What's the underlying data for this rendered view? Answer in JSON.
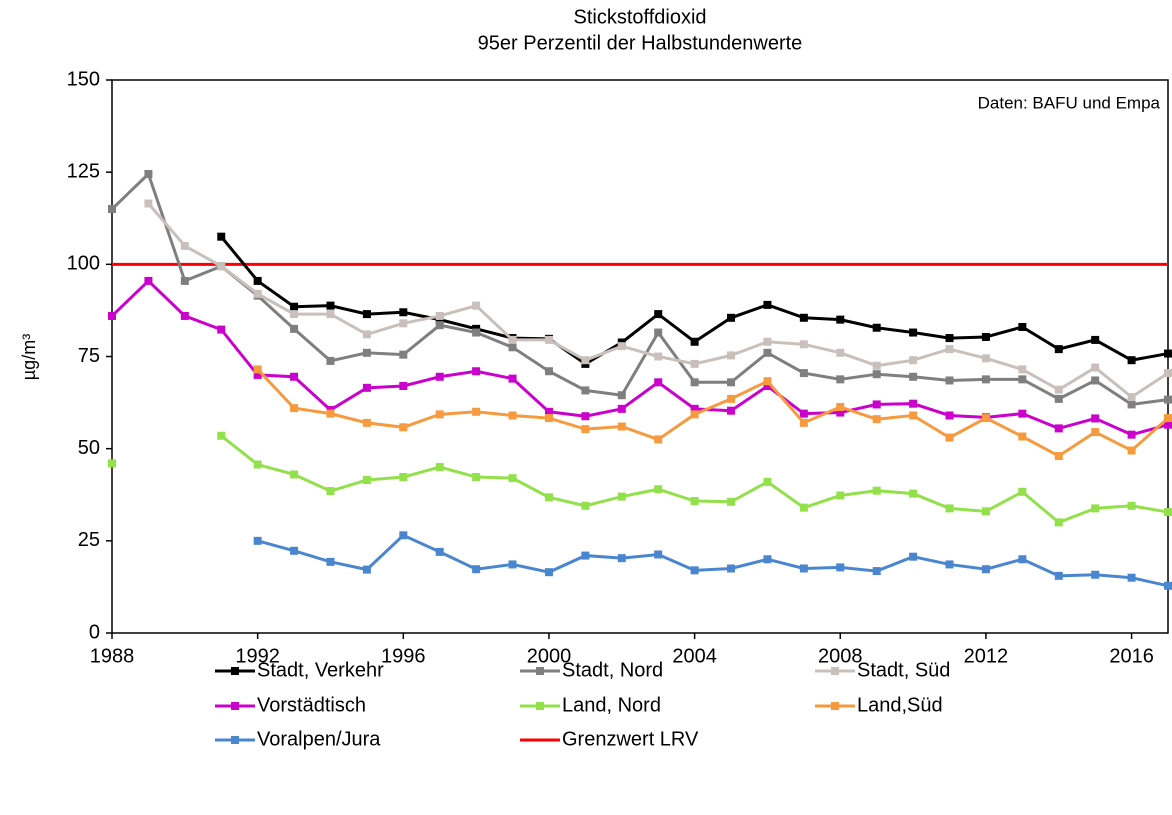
{
  "chart_data": {
    "type": "line",
    "title": "Stickstoffdioxid",
    "subtitle": "95er Perzentil der Halbstundenwerte",
    "y_label": "µg/m³",
    "annotation": "Daten: BAFU und Empa",
    "x": [
      1988,
      1989,
      1990,
      1991,
      1992,
      1993,
      1994,
      1995,
      1996,
      1997,
      1998,
      1999,
      2000,
      2001,
      2002,
      2003,
      2004,
      2005,
      2006,
      2007,
      2008,
      2009,
      2010,
      2011,
      2012,
      2013,
      2014,
      2015,
      2016,
      2017
    ],
    "xlim": [
      1988,
      2017
    ],
    "xticks": [
      1988,
      1992,
      1996,
      2000,
      2004,
      2008,
      2012,
      2016
    ],
    "ylim": [
      0,
      150
    ],
    "yticks": [
      0,
      25,
      50,
      75,
      100,
      125,
      150
    ],
    "series": [
      {
        "name": "Stadt, Verkehr",
        "color": "#000000",
        "values": [
          null,
          null,
          null,
          107.5,
          95.5,
          88.5,
          88.8,
          86.5,
          87,
          85,
          82.5,
          80,
          79.8,
          73,
          78.8,
          86.5,
          79,
          85.5,
          89,
          85.5,
          85,
          82.8,
          81.5,
          80,
          80.3,
          83,
          77,
          79.5,
          74,
          75.8
        ]
      },
      {
        "name": "Stadt, Nord",
        "color": "#7f7f7f",
        "values": [
          115,
          124.5,
          95.5,
          99.5,
          91.5,
          82.5,
          73.8,
          76,
          75.5,
          83.5,
          81.5,
          77.5,
          71,
          65.8,
          64.5,
          81.5,
          68,
          68,
          76,
          70.5,
          68.8,
          70.2,
          69.5,
          68.5,
          68.8,
          68.8,
          63.5,
          68.5,
          62,
          63.3
        ]
      },
      {
        "name": "Stadt, Süd",
        "color": "#c9c0bc",
        "values": [
          null,
          116.5,
          105,
          99.5,
          92,
          86.5,
          86.5,
          81,
          84,
          86,
          88.8,
          79.5,
          79.5,
          74,
          77.8,
          75,
          73,
          75.3,
          79,
          78.3,
          76,
          72.5,
          74,
          77,
          74.5,
          71.5,
          66,
          72,
          64,
          70.5
        ]
      },
      {
        "name": "Vorstädtisch",
        "color": "#cc00cc",
        "values": [
          86,
          95.5,
          86,
          82.3,
          70,
          69.5,
          60.5,
          66.5,
          67,
          69.5,
          71,
          69,
          60,
          58.8,
          60.8,
          68,
          60.8,
          60.3,
          67,
          59.5,
          59.8,
          62,
          62.2,
          59,
          58.5,
          59.5,
          55.5,
          58.2,
          53.8,
          56.5
        ]
      },
      {
        "name": "Land, Nord",
        "color": "#92e04a",
        "values": [
          46,
          null,
          null,
          53.5,
          45.7,
          43,
          38.5,
          41.5,
          42.3,
          45,
          42.3,
          42,
          36.8,
          34.5,
          37,
          39,
          35.8,
          35.6,
          41,
          34,
          37.3,
          38.6,
          37.8,
          33.8,
          33,
          38.3,
          30,
          33.8,
          34.5,
          32.8
        ]
      },
      {
        "name": "Land,Süd",
        "color": "#f79a3e",
        "values": [
          null,
          null,
          null,
          null,
          71.5,
          61,
          59.5,
          57,
          55.8,
          59.3,
          60,
          59,
          58.3,
          55.3,
          56,
          52.5,
          59.3,
          63.5,
          68.3,
          57,
          61.3,
          58,
          59,
          53,
          58.3,
          53.3,
          48,
          54.5,
          49.5,
          58.3
        ]
      },
      {
        "name": "Voralpen/Jura",
        "color": "#4a86d0",
        "values": [
          null,
          null,
          null,
          null,
          25,
          22.3,
          19.3,
          17.2,
          26.5,
          22,
          17.3,
          18.6,
          16.5,
          21,
          20.3,
          21.3,
          17,
          17.5,
          20,
          17.5,
          17.8,
          16.8,
          20.7,
          18.6,
          17.3,
          20,
          15.5,
          15.8,
          15,
          12.8
        ]
      }
    ],
    "reference_line": {
      "name": "Grenzwert LRV",
      "value": 100,
      "color": "#ff0000"
    }
  }
}
